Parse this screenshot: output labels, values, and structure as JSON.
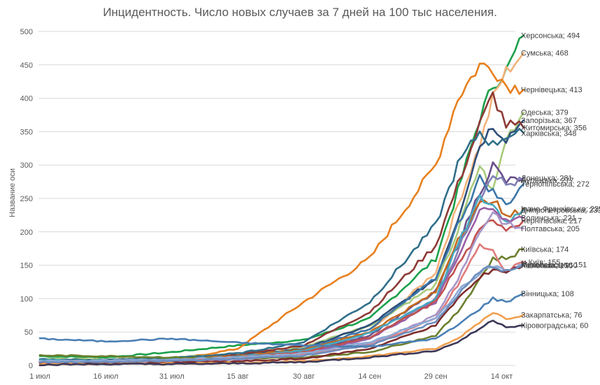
{
  "chart_data": {
    "type": "line",
    "title": "Инцидентность. Число новых случаев за 7 дней на 100 тыс населения.",
    "xlabel": "",
    "ylabel": "Название оси",
    "ylim": [
      0,
      500
    ],
    "yticks": [
      0,
      50,
      100,
      150,
      200,
      250,
      300,
      350,
      400,
      450,
      500
    ],
    "xtick_labels": [
      "1 июл",
      "16 июл",
      "31 июл",
      "15 авг",
      "30 авг",
      "14 сен",
      "29 сен",
      "14 окт"
    ],
    "x_range_days": [
      0,
      110
    ],
    "grid": true,
    "legend_position": "data labels at line ends",
    "x_days": [
      0,
      15,
      30,
      45,
      60,
      75,
      90,
      95,
      100,
      103,
      106,
      110
    ],
    "series": [
      {
        "name": "Херсонська",
        "last": 494,
        "color": "#1aa04a",
        "values": [
          14,
          12,
          20,
          30,
          38,
          70,
          160,
          260,
          370,
          420,
          440,
          494
        ]
      },
      {
        "name": "Сумська",
        "last": 468,
        "color": "#f2b27a",
        "values": [
          8,
          7,
          10,
          15,
          22,
          50,
          140,
          240,
          330,
          400,
          440,
          468
        ]
      },
      {
        "name": "Чернівецька",
        "last": 413,
        "color": "#e8801e",
        "values": [
          5,
          6,
          8,
          25,
          95,
          160,
          300,
          400,
          450,
          445,
          420,
          413
        ]
      },
      {
        "name": "Одеська",
        "last": 379,
        "color": "#a9cb7b",
        "values": [
          10,
          9,
          12,
          18,
          28,
          60,
          120,
          200,
          300,
          260,
          340,
          379
        ]
      },
      {
        "name": "Запорізька",
        "last": 367,
        "color": "#2d4e7a",
        "values": [
          7,
          8,
          10,
          15,
          25,
          60,
          130,
          220,
          330,
          360,
          340,
          367
        ]
      },
      {
        "name": "Житомирська",
        "last": 356,
        "color": "#8e3a36",
        "values": [
          6,
          7,
          9,
          16,
          30,
          80,
          180,
          270,
          360,
          405,
          360,
          356
        ]
      },
      {
        "name": "Харківська",
        "last": 348,
        "color": "#2f6e8a",
        "values": [
          9,
          8,
          11,
          18,
          35,
          95,
          210,
          300,
          350,
          330,
          345,
          348
        ]
      },
      {
        "name": "Донецька",
        "last": 281,
        "color": "#6a4f8c",
        "values": [
          5,
          5,
          7,
          12,
          20,
          45,
          110,
          180,
          260,
          300,
          275,
          281
        ]
      },
      {
        "name": "Луганська",
        "last": 277,
        "color": "#7f7fb5",
        "values": [
          4,
          5,
          6,
          10,
          18,
          40,
          100,
          170,
          250,
          290,
          270,
          277
        ]
      },
      {
        "name": "Тернопільська",
        "last": 272,
        "color": "#3b76a8",
        "values": [
          6,
          6,
          8,
          14,
          24,
          55,
          130,
          210,
          280,
          260,
          240,
          272
        ]
      },
      {
        "name": "Івано-Франківська",
        "last": 235,
        "color": "#c46a1e",
        "values": [
          5,
          6,
          8,
          14,
          24,
          50,
          110,
          190,
          240,
          250,
          220,
          235
        ]
      },
      {
        "name": "Дніпропетровська",
        "last": 233,
        "color": "#45a8c0",
        "values": [
          8,
          7,
          9,
          13,
          22,
          48,
          100,
          180,
          250,
          240,
          215,
          233
        ]
      },
      {
        "name": "Волинська",
        "last": 221,
        "color": "#9a5fa5",
        "values": [
          4,
          4,
          6,
          10,
          18,
          40,
          95,
          160,
          230,
          240,
          215,
          221
        ]
      },
      {
        "name": "Чернігівська",
        "last": 217,
        "color": "#c0504d",
        "values": [
          5,
          5,
          7,
          12,
          20,
          42,
          95,
          150,
          200,
          220,
          205,
          217
        ]
      },
      {
        "name": "Полтавська",
        "last": 205,
        "color": "#a895c9",
        "values": [
          4,
          4,
          5,
          9,
          15,
          32,
          75,
          130,
          200,
          230,
          210,
          205
        ]
      },
      {
        "name": "Київська",
        "last": 174,
        "color": "#6b7f2e",
        "values": [
          15,
          14,
          12,
          10,
          12,
          20,
          45,
          80,
          130,
          160,
          160,
          174
        ]
      },
      {
        "name": "м.Київ",
        "last": 155,
        "color": "#e07b7b",
        "values": [
          6,
          6,
          8,
          12,
          18,
          30,
          70,
          120,
          180,
          170,
          140,
          155
        ]
      },
      {
        "name": "Миколаївська",
        "last": 151,
        "color": "#8da9d4",
        "values": [
          7,
          7,
          9,
          12,
          18,
          35,
          70,
          110,
          140,
          150,
          140,
          151
        ]
      },
      {
        "name": "Львівська",
        "last": 150,
        "color": "#7d2c2c",
        "values": [
          3,
          3,
          4,
          6,
          10,
          25,
          60,
          100,
          130,
          145,
          140,
          150
        ]
      },
      {
        "name": "Рівненська",
        "last": 150,
        "color": "#6c8ebf",
        "values": [
          5,
          5,
          7,
          10,
          15,
          30,
          65,
          105,
          140,
          150,
          140,
          150
        ]
      },
      {
        "name": "Вінницька",
        "last": 108,
        "color": "#4a7fb5",
        "values": [
          40,
          36,
          40,
          34,
          30,
          28,
          40,
          60,
          85,
          100,
          95,
          108
        ]
      },
      {
        "name": "Закарпатська",
        "last": 76,
        "color": "#f0a050",
        "values": [
          2,
          2,
          3,
          4,
          6,
          14,
          25,
          40,
          65,
          80,
          70,
          76
        ]
      },
      {
        "name": "Кіровоградська",
        "last": 60,
        "color": "#3d3757",
        "values": [
          1,
          2,
          2,
          3,
          5,
          12,
          22,
          35,
          55,
          68,
          58,
          60
        ]
      }
    ]
  }
}
